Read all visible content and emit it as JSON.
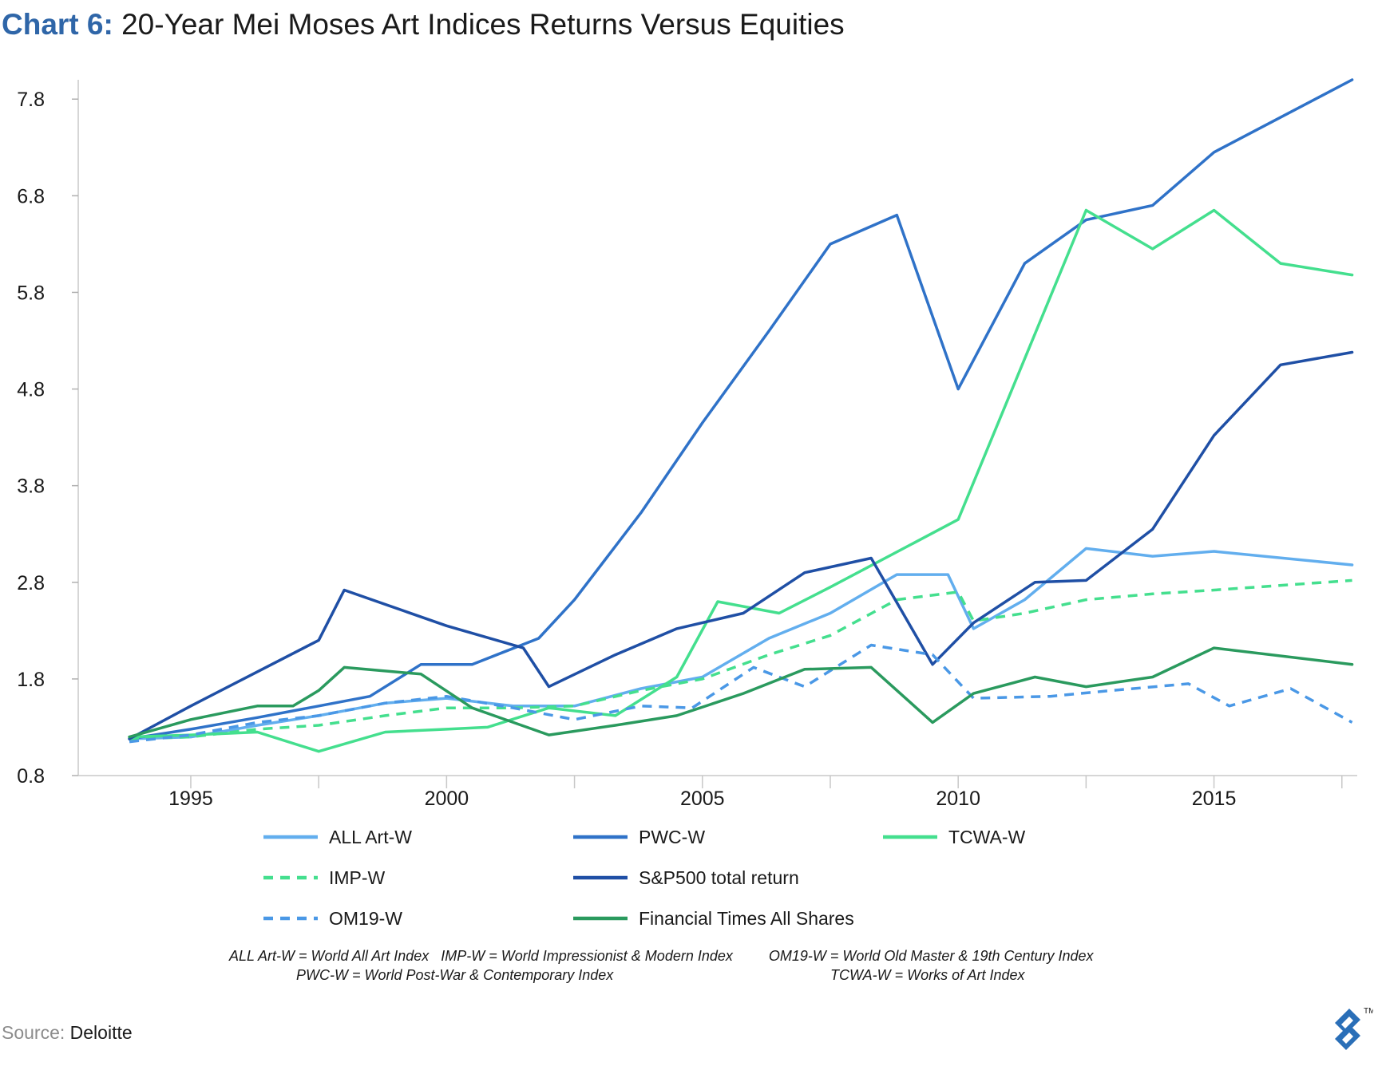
{
  "title": {
    "prefix": "Chart 6:",
    "main": "20-Year Mei Moses Art Indices Returns Versus Equities"
  },
  "chart_data": {
    "type": "line",
    "title": "20-Year Mei Moses Art Indices Returns Versus Equities",
    "xlabel": "",
    "ylabel": "",
    "xlim": [
      1992.8,
      2017.8
    ],
    "ylim": [
      0.8,
      8.0
    ],
    "x_ticks": [
      1995,
      2000,
      2005,
      2010,
      2015
    ],
    "x_tick_labels": [
      "1995",
      "2000",
      "2005",
      "2010",
      "2015"
    ],
    "y_ticks": [
      0.8,
      1.8,
      2.8,
      3.8,
      4.8,
      5.8,
      6.8,
      7.8
    ],
    "y_tick_labels": [
      "0.8",
      "1.8",
      "2.8",
      "3.8",
      "4.8",
      "5.8",
      "6.8",
      "7.8"
    ],
    "grid": false,
    "legend_position": "bottom",
    "series": [
      {
        "name": "ALL Art-W",
        "color": "#62aeee",
        "dash": "solid",
        "points": [
          [
            1993.8,
            1.18
          ],
          [
            1995.0,
            1.2
          ],
          [
            1996.3,
            1.32
          ],
          [
            1997.5,
            1.42
          ],
          [
            1998.8,
            1.55
          ],
          [
            2000.0,
            1.6
          ],
          [
            2001.3,
            1.52
          ],
          [
            2002.5,
            1.52
          ],
          [
            2003.8,
            1.7
          ],
          [
            2005.0,
            1.82
          ],
          [
            2006.3,
            2.22
          ],
          [
            2007.5,
            2.48
          ],
          [
            2008.8,
            2.88
          ],
          [
            2009.8,
            2.88
          ],
          [
            2010.3,
            2.32
          ],
          [
            2011.3,
            2.62
          ],
          [
            2012.5,
            3.15
          ],
          [
            2013.8,
            3.07
          ],
          [
            2015.0,
            3.12
          ],
          [
            2017.7,
            2.98
          ]
        ]
      },
      {
        "name": "PWC-W",
        "color": "#2f72c8",
        "dash": "solid",
        "points": [
          [
            1993.8,
            1.18
          ],
          [
            1995.0,
            1.28
          ],
          [
            1996.3,
            1.4
          ],
          [
            1997.5,
            1.52
          ],
          [
            1998.5,
            1.62
          ],
          [
            1999.5,
            1.95
          ],
          [
            2000.5,
            1.95
          ],
          [
            2001.8,
            2.22
          ],
          [
            2002.5,
            2.62
          ],
          [
            2003.8,
            3.52
          ],
          [
            2005.0,
            4.45
          ],
          [
            2006.3,
            5.4
          ],
          [
            2007.5,
            6.3
          ],
          [
            2008.8,
            6.6
          ],
          [
            2010.0,
            4.8
          ],
          [
            2011.3,
            6.1
          ],
          [
            2012.5,
            6.55
          ],
          [
            2013.8,
            6.7
          ],
          [
            2015.0,
            7.25
          ],
          [
            2017.7,
            8.0
          ]
        ]
      },
      {
        "name": "TCWA-W",
        "color": "#44df8e",
        "dash": "solid",
        "points": [
          [
            1993.8,
            1.2
          ],
          [
            1995.0,
            1.22
          ],
          [
            1996.3,
            1.25
          ],
          [
            1997.5,
            1.05
          ],
          [
            1998.8,
            1.25
          ],
          [
            2000.0,
            1.28
          ],
          [
            2000.8,
            1.3
          ],
          [
            2002.0,
            1.5
          ],
          [
            2003.3,
            1.42
          ],
          [
            2004.5,
            1.82
          ],
          [
            2005.3,
            2.6
          ],
          [
            2006.5,
            2.48
          ],
          [
            2007.5,
            2.75
          ],
          [
            2010.0,
            3.45
          ],
          [
            2012.5,
            6.65
          ],
          [
            2013.8,
            6.25
          ],
          [
            2015.0,
            6.65
          ],
          [
            2016.3,
            6.1
          ],
          [
            2017.7,
            5.98
          ]
        ]
      },
      {
        "name": "IMP-W",
        "color": "#44df8e",
        "dash": "dashed",
        "points": [
          [
            1993.8,
            1.18
          ],
          [
            1995.0,
            1.2
          ],
          [
            1996.3,
            1.28
          ],
          [
            1997.5,
            1.32
          ],
          [
            1998.8,
            1.42
          ],
          [
            2000.0,
            1.5
          ],
          [
            2001.3,
            1.5
          ],
          [
            2002.5,
            1.52
          ],
          [
            2003.8,
            1.68
          ],
          [
            2005.0,
            1.8
          ],
          [
            2006.3,
            2.05
          ],
          [
            2007.5,
            2.25
          ],
          [
            2008.8,
            2.62
          ],
          [
            2010.0,
            2.7
          ],
          [
            2010.3,
            2.4
          ],
          [
            2011.3,
            2.48
          ],
          [
            2012.5,
            2.62
          ],
          [
            2013.8,
            2.68
          ],
          [
            2015.0,
            2.72
          ],
          [
            2017.7,
            2.82
          ]
        ]
      },
      {
        "name": "S&P500 total return",
        "color": "#1f4fa5",
        "dash": "solid",
        "points": [
          [
            1993.8,
            1.18
          ],
          [
            1995.0,
            1.52
          ],
          [
            1997.5,
            2.2
          ],
          [
            1998.0,
            2.72
          ],
          [
            2000.0,
            2.35
          ],
          [
            2001.5,
            2.12
          ],
          [
            2002.0,
            1.72
          ],
          [
            2003.3,
            2.05
          ],
          [
            2004.5,
            2.32
          ],
          [
            2005.8,
            2.48
          ],
          [
            2007.0,
            2.9
          ],
          [
            2008.3,
            3.05
          ],
          [
            2009.5,
            1.95
          ],
          [
            2010.3,
            2.38
          ],
          [
            2011.5,
            2.8
          ],
          [
            2012.5,
            2.82
          ],
          [
            2013.8,
            3.35
          ],
          [
            2015.0,
            4.32
          ],
          [
            2016.3,
            5.05
          ],
          [
            2017.7,
            5.18
          ]
        ]
      },
      {
        "name": "OM19-W",
        "color": "#4a98e6",
        "dash": "dashed",
        "points": [
          [
            1993.8,
            1.15
          ],
          [
            1995.0,
            1.22
          ],
          [
            1996.3,
            1.35
          ],
          [
            1997.5,
            1.42
          ],
          [
            1998.8,
            1.55
          ],
          [
            2000.0,
            1.62
          ],
          [
            2001.3,
            1.5
          ],
          [
            2002.5,
            1.38
          ],
          [
            2003.8,
            1.52
          ],
          [
            2004.8,
            1.5
          ],
          [
            2006.0,
            1.92
          ],
          [
            2007.0,
            1.72
          ],
          [
            2008.3,
            2.15
          ],
          [
            2009.5,
            2.05
          ],
          [
            2010.3,
            1.6
          ],
          [
            2011.8,
            1.62
          ],
          [
            2013.0,
            1.68
          ],
          [
            2014.5,
            1.75
          ],
          [
            2015.3,
            1.52
          ],
          [
            2016.5,
            1.7
          ],
          [
            2017.7,
            1.35
          ]
        ]
      },
      {
        "name": "Financial Times All Shares",
        "color": "#2a9a5e",
        "dash": "solid",
        "points": [
          [
            1993.8,
            1.2
          ],
          [
            1995.0,
            1.38
          ],
          [
            1996.3,
            1.52
          ],
          [
            1997.0,
            1.52
          ],
          [
            1997.5,
            1.68
          ],
          [
            1998.0,
            1.92
          ],
          [
            1999.5,
            1.85
          ],
          [
            2000.5,
            1.5
          ],
          [
            2002.0,
            1.22
          ],
          [
            2003.3,
            1.32
          ],
          [
            2004.5,
            1.42
          ],
          [
            2005.8,
            1.65
          ],
          [
            2007.0,
            1.9
          ],
          [
            2008.3,
            1.92
          ],
          [
            2009.5,
            1.35
          ],
          [
            2010.3,
            1.65
          ],
          [
            2011.5,
            1.82
          ],
          [
            2012.5,
            1.72
          ],
          [
            2013.8,
            1.82
          ],
          [
            2015.0,
            2.12
          ],
          [
            2017.7,
            1.95
          ]
        ]
      }
    ]
  },
  "footnote": {
    "line1": [
      "ALL Art-W = World All Art Index",
      "IMP-W = World Impressionist & Modern Index",
      "OM19-W = World Old Master & 19th Century Index"
    ],
    "line2": [
      "PWC-W = World Post-War & Contemporary Index",
      "TCWA-W = Works of Art Index"
    ]
  },
  "source": {
    "label": "Source:",
    "value": "Deloitte"
  },
  "logo": {
    "icon": "toptal-logo-icon",
    "mark": "TM",
    "color": "#2a6fb8"
  }
}
